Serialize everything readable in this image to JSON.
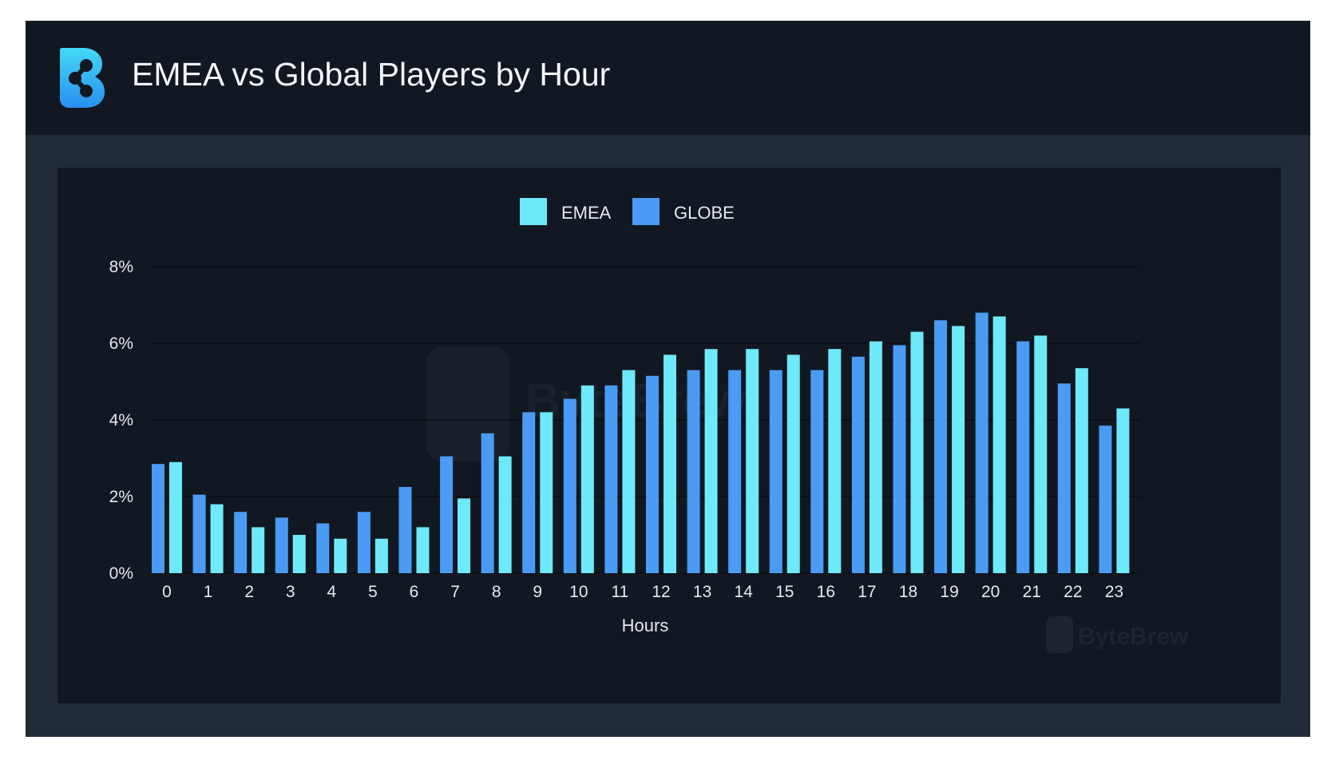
{
  "header": {
    "title": "EMEA vs Global Players by Hour",
    "logo_icon": "bytebrew-logo-icon"
  },
  "watermark": {
    "text": "ByteBrew"
  },
  "colors": {
    "emea": "#6ee9fa",
    "globe": "#4a9bf4",
    "grid": "#0a0e14"
  },
  "chart_data": {
    "type": "bar",
    "title": "EMEA vs Global Players by Hour",
    "xlabel": "Hours",
    "ylabel": "",
    "ylim": [
      0,
      8
    ],
    "yticks": [
      "0%",
      "2%",
      "4%",
      "6%",
      "8%"
    ],
    "categories": [
      "0",
      "1",
      "2",
      "3",
      "4",
      "5",
      "6",
      "7",
      "8",
      "9",
      "10",
      "11",
      "12",
      "13",
      "14",
      "15",
      "16",
      "17",
      "18",
      "19",
      "20",
      "21",
      "22",
      "23"
    ],
    "legend_position": "top-center",
    "grid": true,
    "series": [
      {
        "name": "GLOBE",
        "color": "#4a9bf4",
        "values": [
          2.85,
          2.05,
          1.6,
          1.45,
          1.3,
          1.6,
          2.25,
          3.05,
          3.65,
          4.2,
          4.55,
          4.9,
          5.15,
          5.3,
          5.3,
          5.3,
          5.3,
          5.65,
          5.95,
          6.6,
          6.8,
          6.05,
          4.95,
          3.85
        ]
      },
      {
        "name": "EMEA",
        "color": "#6ee9fa",
        "values": [
          2.9,
          1.8,
          1.2,
          1.0,
          0.9,
          0.9,
          1.2,
          1.95,
          3.05,
          4.2,
          4.9,
          5.3,
          5.7,
          5.85,
          5.85,
          5.7,
          5.85,
          6.05,
          6.3,
          6.45,
          6.7,
          6.2,
          5.35,
          4.3
        ]
      }
    ],
    "legend": [
      "EMEA",
      "GLOBE"
    ]
  }
}
